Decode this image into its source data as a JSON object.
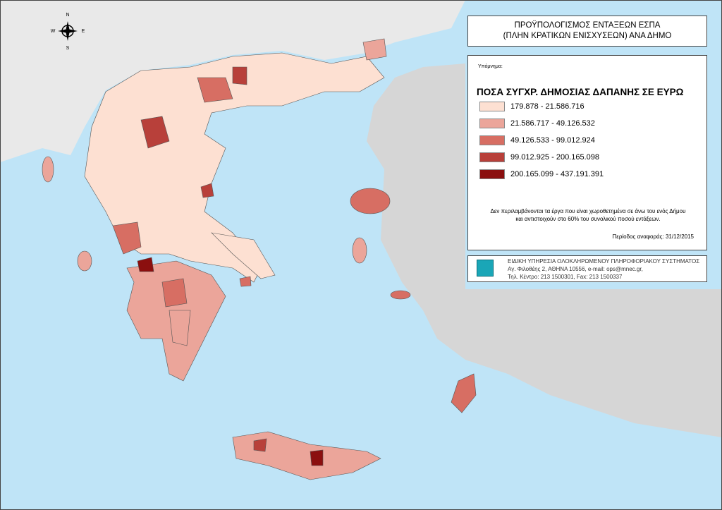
{
  "compass": {
    "n": "N",
    "w": "W",
    "e": "E",
    "s": "S"
  },
  "title": {
    "line1": "ΠΡΟΫΠΟΛΟΓΙΣΜΟΣ ΕΝΤΑΞΕΩΝ ΕΣΠΑ",
    "line2": "(ΠΛΗΝ ΚΡΑΤΙΚΩΝ ΕΝΙΣΧΥΣΕΩΝ) ΑΝΑ ΔΗΜΟ"
  },
  "legend": {
    "caption": "Υπόμνημα:",
    "title": "ΠΟΣΑ ΣΥΓΧΡ. ΔΗΜΟΣΙΑΣ ΔΑΠΑΝΗΣ ΣΕ ΕΥΡΩ",
    "items": [
      {
        "label": "179.878 - 21.586.716",
        "color": "#fde0d2"
      },
      {
        "label": "21.586.717 - 49.126.532",
        "color": "#eba59a"
      },
      {
        "label": "49.126.533 - 99.012.924",
        "color": "#d76e63"
      },
      {
        "label": "99.012.925 - 200.165.098",
        "color": "#b8403a"
      },
      {
        "label": "200.165.099 - 437.191.391",
        "color": "#8b0f0f"
      }
    ],
    "note_line1": "Δεν περιλαμβάνονται τα έργα που είναι χωροθετημένα σε άνω του ενός Δήμου",
    "note_line2": "και αντιστοιχούν στο 60%  του συνολικού ποσού εντάξεων.",
    "period": "Περίοδος αναφοράς: 31/12/2015"
  },
  "footer": {
    "org": "ΕΙΔΙΚΗ ΥΠΗΡΕΣΙΑ ΟΛΟΚΛΗΡΩΜΕΝΟΥ ΠΛΗΡΟΦΟΡΙΑΚΟΥ ΣΥΣΤΗΜΑΤΟΣ",
    "address": "Αγ. Φιλοθέης 2, ΑΘΗΝΑ 10556, e-mail: ops@mnec.gr,",
    "phone": "Τηλ. Κέντρο: 213 1500301, Fax: 213 1500337"
  }
}
